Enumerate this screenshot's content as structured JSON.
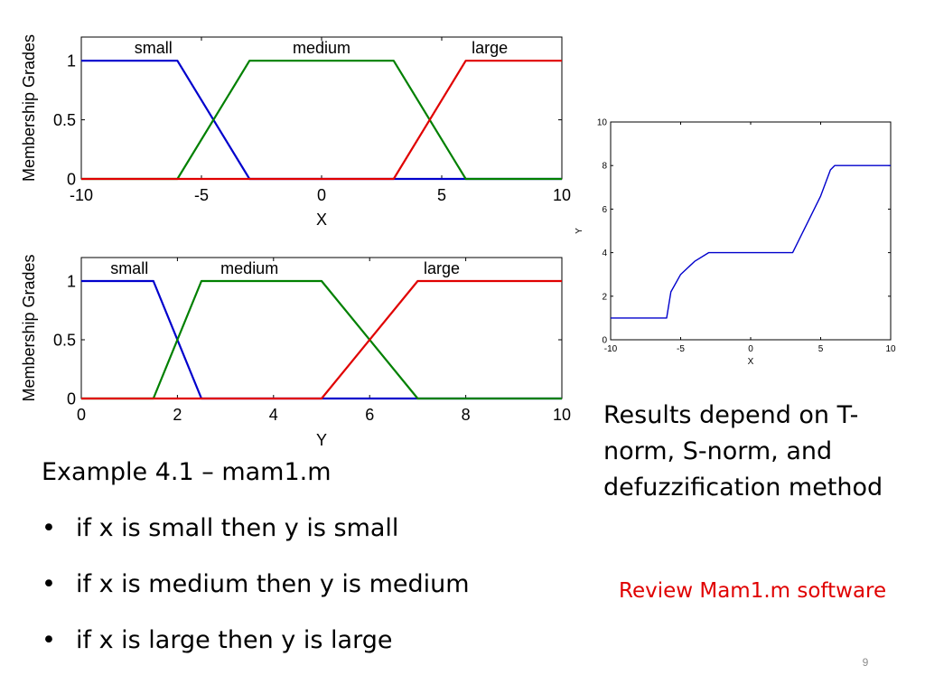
{
  "chart_data": [
    {
      "type": "line",
      "xlabel": "X",
      "ylabel": "Membership Grades",
      "xlim": [
        -10,
        10
      ],
      "ylim": [
        0,
        1.2
      ],
      "x_ticks": [
        -10,
        -5,
        0,
        5,
        10
      ],
      "x_tick_labels": [
        "-10",
        "-5",
        "0",
        "5",
        "10"
      ],
      "y_ticks": [
        0,
        0.5,
        1
      ],
      "y_tick_labels": [
        "0",
        "0.5",
        "1"
      ],
      "series": [
        {
          "name": "small",
          "color": "#0000cc",
          "x": [
            -10,
            -6,
            -3,
            10
          ],
          "y": [
            1,
            1,
            0,
            0
          ]
        },
        {
          "name": "medium",
          "color": "#008000",
          "x": [
            -10,
            -6,
            -3,
            3,
            6,
            10
          ],
          "y": [
            0,
            0,
            1,
            1,
            0,
            0
          ]
        },
        {
          "name": "large",
          "color": "#e00000",
          "x": [
            -10,
            3,
            6,
            10
          ],
          "y": [
            0,
            0,
            1,
            1
          ]
        }
      ],
      "label_x": [
        -7,
        0,
        7
      ]
    },
    {
      "type": "line",
      "xlabel": "Y",
      "ylabel": "Membership Grades",
      "xlim": [
        0,
        10
      ],
      "ylim": [
        0,
        1.2
      ],
      "x_ticks": [
        0,
        2,
        4,
        6,
        8,
        10
      ],
      "x_tick_labels": [
        "0",
        "2",
        "4",
        "6",
        "8",
        "10"
      ],
      "y_ticks": [
        0,
        0.5,
        1
      ],
      "y_tick_labels": [
        "0",
        "0.5",
        "1"
      ],
      "series": [
        {
          "name": "small",
          "color": "#0000cc",
          "x": [
            0,
            1.5,
            2.5,
            10
          ],
          "y": [
            1,
            1,
            0,
            0
          ]
        },
        {
          "name": "medium",
          "color": "#008000",
          "x": [
            0,
            1.5,
            2.5,
            5,
            7,
            10
          ],
          "y": [
            0,
            0,
            1,
            1,
            0,
            0
          ]
        },
        {
          "name": "large",
          "color": "#e00000",
          "x": [
            0,
            5,
            7,
            10
          ],
          "y": [
            0,
            0,
            1,
            1
          ]
        }
      ],
      "label_x": [
        1,
        3.5,
        7.5
      ]
    },
    {
      "type": "line",
      "xlabel": "X",
      "ylabel": "Y",
      "xlim": [
        -10,
        10
      ],
      "ylim": [
        0,
        10
      ],
      "x_ticks": [
        -10,
        -5,
        0,
        5,
        10
      ],
      "x_tick_labels": [
        "-10",
        "-5",
        "0",
        "5",
        "10"
      ],
      "y_ticks": [
        0,
        2,
        4,
        6,
        8,
        10
      ],
      "y_tick_labels": [
        "0",
        "2",
        "4",
        "6",
        "8",
        "10"
      ],
      "series": [
        {
          "color": "#0000cc",
          "x": [
            -10,
            -6.0,
            -5.7,
            -5.0,
            -4.0,
            -3.0,
            3.0,
            4.0,
            5.0,
            5.7,
            6.0,
            10
          ],
          "y": [
            1,
            1,
            2.2,
            3.0,
            3.6,
            4.0,
            4.0,
            5.3,
            6.6,
            7.8,
            8,
            8
          ]
        }
      ]
    }
  ],
  "example": {
    "title": "Example 4.1 – mam1.m",
    "bullet": "•",
    "rules": [
      "if x is small then y is small",
      "if x is medium then y is medium",
      "if x is large then y is large"
    ]
  },
  "notes": {
    "results": "Results depend on T-norm, S-norm, and defuzzification method",
    "review": "Review Mam1.m software"
  },
  "page_number": "9"
}
